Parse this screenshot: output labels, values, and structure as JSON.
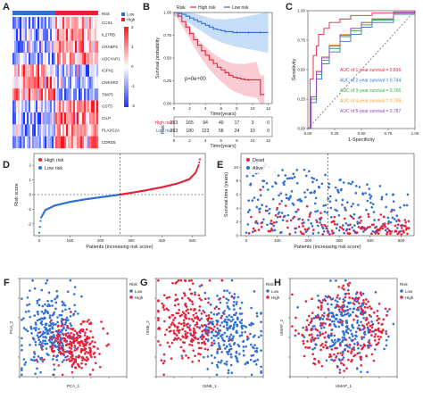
{
  "colors": {
    "high": "#e8213a",
    "low": "#2f6fd6",
    "dead": "#e8213a",
    "alive": "#2f6fd6",
    "auc": [
      "#e8213a",
      "#2f6fd6",
      "#2eaa42",
      "#f0a020",
      "#8a3fc8"
    ]
  },
  "chart_data": [
    {
      "panel": "A",
      "type": "heatmap",
      "genes": [
        "CCS1",
        "IL27RB",
        "CRABP2",
        "ADCYAP1",
        "IGFN1",
        "CNKSR2",
        "TIM75",
        "GST5",
        "CILP",
        "PLA2G2A",
        "CDRD5"
      ],
      "annotation_label": "Risk",
      "legend": [
        "Low",
        "High"
      ],
      "scale_ticks": [
        "2",
        "1",
        "0",
        "-1",
        "-2"
      ]
    },
    {
      "panel": "B",
      "type": "line",
      "legend_title": "Risk",
      "legend": [
        "High risk",
        "Low risk"
      ],
      "ylabel": "Survival probability",
      "xlabel": "Time(years)",
      "annotation": "p=0e+00",
      "x_ticks": [
        "0",
        "2",
        "4",
        "6",
        "8",
        "10",
        "12"
      ],
      "y_ticks": [
        "0.00",
        "0.25",
        "0.50",
        "0.75",
        "1.00"
      ],
      "xlim": [
        0,
        12.5
      ],
      "ylim": [
        0,
        1
      ],
      "series": [
        {
          "name": "High risk",
          "x": [
            0,
            0.5,
            1,
            1.5,
            2,
            2.5,
            3,
            3.5,
            4,
            4.5,
            5,
            5.5,
            6,
            6.5,
            7,
            7.5,
            8,
            8.5,
            9,
            9.5,
            10,
            10.5,
            11,
            11.5
          ],
          "y": [
            1.0,
            0.96,
            0.9,
            0.84,
            0.77,
            0.7,
            0.64,
            0.58,
            0.53,
            0.48,
            0.44,
            0.4,
            0.37,
            0.34,
            0.31,
            0.29,
            0.28,
            0.27,
            0.26,
            0.26,
            0.26,
            0.26,
            0.1,
            0.1
          ]
        },
        {
          "name": "Low risk",
          "x": [
            0,
            0.5,
            1,
            1.5,
            2,
            2.5,
            3,
            3.5,
            4,
            4.5,
            5,
            5.5,
            6,
            6.5,
            7,
            7.5,
            8,
            8.5,
            9,
            9.5,
            10,
            10.5,
            11,
            11.5,
            12
          ],
          "y": [
            1.0,
            0.99,
            0.98,
            0.96,
            0.94,
            0.92,
            0.9,
            0.88,
            0.86,
            0.84,
            0.82,
            0.81,
            0.8,
            0.79,
            0.79,
            0.78,
            0.78,
            0.78,
            0.78,
            0.78,
            0.78,
            0.78,
            0.78,
            0.78,
            0.78
          ]
        }
      ],
      "risk_table": {
        "title": "Risk",
        "xlabel": "Time(years)",
        "x_ticks": [
          "0",
          "2",
          "4",
          "6",
          "8",
          "10",
          "12"
        ],
        "rows": [
          {
            "label": "High risk",
            "values": [
              "263",
              "165",
              "94",
              "40",
              "17",
              "3",
              "0"
            ]
          },
          {
            "label": "Low risk",
            "values": [
              "263",
              "180",
              "123",
              "58",
              "24",
              "10",
              "0"
            ]
          }
        ]
      }
    },
    {
      "panel": "C",
      "type": "line",
      "ylabel": "Sensitivity",
      "xlabel": "1-Specificity",
      "x_ticks": [
        "0.00",
        "0.25",
        "0.50",
        "0.75",
        "1.00"
      ],
      "y_ticks": [
        "0.00",
        "0.25",
        "0.50",
        "0.75",
        "1.00"
      ],
      "xlim": [
        0,
        1
      ],
      "ylim": [
        0,
        1
      ],
      "legend": [
        "AUC of 1-year survival = 0.836",
        "AUC of 2-year survival = 0.744",
        "AUC of 3-year survival = 0.766",
        "AUC of 4-year survival = 0.789",
        "AUC of 5-year survival = 0.787"
      ],
      "series": [
        {
          "x": [
            0,
            0.02,
            0.05,
            0.08,
            0.1,
            0.15,
            0.2,
            0.3,
            0.4,
            0.6,
            0.8,
            1
          ],
          "y": [
            0,
            0.42,
            0.62,
            0.7,
            0.8,
            0.85,
            0.9,
            0.93,
            0.96,
            0.98,
            0.99,
            1
          ]
        },
        {
          "x": [
            0,
            0.03,
            0.08,
            0.13,
            0.2,
            0.3,
            0.4,
            0.5,
            0.6,
            0.8,
            1
          ],
          "y": [
            0,
            0.22,
            0.42,
            0.55,
            0.65,
            0.74,
            0.8,
            0.86,
            0.9,
            0.97,
            1
          ]
        },
        {
          "x": [
            0,
            0.03,
            0.08,
            0.13,
            0.2,
            0.3,
            0.4,
            0.5,
            0.6,
            0.8,
            1
          ],
          "y": [
            0,
            0.25,
            0.46,
            0.58,
            0.68,
            0.78,
            0.83,
            0.88,
            0.92,
            0.97,
            1
          ]
        },
        {
          "x": [
            0,
            0.03,
            0.08,
            0.13,
            0.2,
            0.3,
            0.4,
            0.5,
            0.6,
            0.8,
            1
          ],
          "y": [
            0,
            0.27,
            0.49,
            0.61,
            0.71,
            0.8,
            0.85,
            0.9,
            0.93,
            0.98,
            1
          ]
        },
        {
          "x": [
            0,
            0.03,
            0.08,
            0.13,
            0.2,
            0.3,
            0.4,
            0.5,
            0.6,
            0.8,
            1
          ],
          "y": [
            0,
            0.27,
            0.48,
            0.6,
            0.7,
            0.79,
            0.85,
            0.9,
            0.93,
            0.98,
            1
          ]
        }
      ]
    },
    {
      "panel": "D",
      "type": "scatter",
      "ylabel": "Risk score",
      "xlabel": "Patients (increasing risk score)",
      "legend": [
        "High risk",
        "Low risk"
      ],
      "x_ticks": [
        "0",
        "100",
        "200",
        "300",
        "400",
        "500"
      ],
      "y_ticks": [
        "-2",
        "-1",
        "0",
        "1",
        "2"
      ],
      "n": 526,
      "cutoff": 263,
      "curve_x": [
        0,
        5,
        20,
        50,
        100,
        150,
        200,
        250,
        263,
        300,
        350,
        400,
        450,
        490,
        510,
        520,
        526
      ],
      "curve_y": [
        -2.6,
        -1.6,
        -1.05,
        -0.75,
        -0.5,
        -0.32,
        -0.18,
        -0.04,
        0.0,
        0.12,
        0.3,
        0.5,
        0.75,
        1.05,
        1.5,
        2.0,
        2.6
      ]
    },
    {
      "panel": "E",
      "type": "scatter",
      "ylabel": "Survival time (years)",
      "xlabel": "Patients (increasing risk score)",
      "legend": [
        "Dead",
        "Alive"
      ],
      "x_ticks": [
        "0",
        "100",
        "200",
        "300",
        "400",
        "500"
      ],
      "y_ticks": [
        "0",
        "2",
        "4",
        "6",
        "8",
        "10"
      ],
      "n": 526,
      "cutoff": 263,
      "ymax": 12
    },
    {
      "panel": "F",
      "type": "scatter",
      "xlabel": "PCA_1",
      "ylabel": "PCA_2",
      "legend_title": "Risk",
      "legend": [
        "Low",
        "High"
      ]
    },
    {
      "panel": "G",
      "type": "scatter",
      "xlabel": "tSNE_1",
      "ylabel": "tSNE_2",
      "legend_title": "Risk",
      "legend": [
        "Low",
        "High"
      ]
    },
    {
      "panel": "H",
      "type": "scatter",
      "xlabel": "UMAP_1",
      "ylabel": "UMAP_2",
      "legend_title": "Risk",
      "legend": [
        "Low",
        "High"
      ]
    }
  ]
}
